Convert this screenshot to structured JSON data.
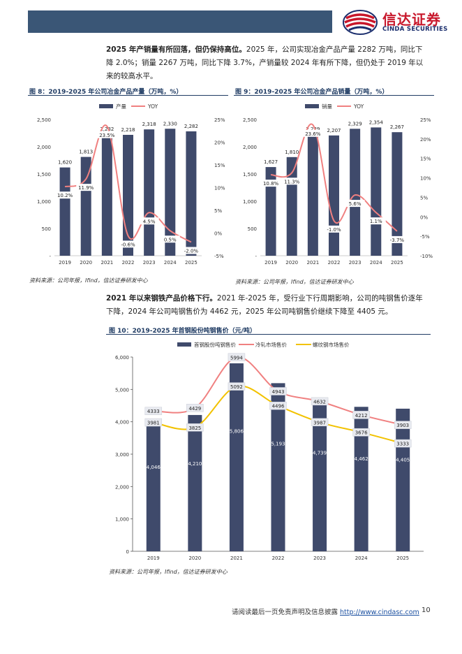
{
  "header": {
    "logo_cn": "信达证券",
    "logo_en": "CINDA SECURITIES"
  },
  "para1": {
    "bold": "2025 年产销量有所回落，但仍保持高位。",
    "text": "2025 年，公司实现冶金产品产量 2282 万吨，同比下降 2.0%；销量 2267 万吨，同比下降 3.7%，产销量较 2024 年有所下降，但仍处于 2019 年以来的较高水平。"
  },
  "fig8": {
    "title": "图 8：2019-2025 年公司冶金产品产量（万吨，%）",
    "source": "资料来源：公司年报，Ifind，信达证券研发中心"
  },
  "fig9": {
    "title": "图 9：2019-2025 年公司冶金产品销量（万吨，%）",
    "source": "资料来源：公司年报，Ifind，信达证券研发中心"
  },
  "para2": {
    "bold": "2021 年以来钢铁产品价格下行。",
    "text": "2021 年-2025 年，受行业下行周期影响，公司的吨钢售价逐年下降，2024 年公司吨钢售价为 4462 元，2025 年公司吨钢售价继续下降至 4405 元。"
  },
  "fig10": {
    "title": "图 10：2019-2025 年首钢股份吨钢售价（元/吨）",
    "source": "资料来源：公司年报，Ifind，信达证券研发中心"
  },
  "footer": {
    "text": "请阅读最后一页免责声明及信息披露 ",
    "link": "http://www.cindasc.com",
    "page": "10"
  },
  "colors": {
    "bar": "#3f4a6b",
    "yoy": "#f08080",
    "cold": "#f08080",
    "rebar": "#f2c200"
  },
  "chart_data": [
    {
      "type": "bar",
      "categories": [
        "2019",
        "2020",
        "2021",
        "2022",
        "2023",
        "2024",
        "2025"
      ],
      "series": [
        {
          "name": "产量",
          "type": "bar",
          "axis": "left",
          "values": [
            1620,
            1813,
            2232,
            2218,
            2318,
            2330,
            2282
          ]
        },
        {
          "name": "YOY",
          "type": "line",
          "axis": "right",
          "values": [
            10.2,
            11.9,
            23.5,
            -0.6,
            4.5,
            0.5,
            -2.0
          ]
        }
      ],
      "bar_labels": [
        "1,620",
        "1,813",
        "2,232",
        "2,218",
        "2,318",
        "2,330",
        "2,282"
      ],
      "yoy_labels": [
        "10.2%",
        "11.9%",
        "23.5%",
        "-0.6%",
        "4.5%",
        "0.5%",
        "-2.0%"
      ],
      "ylim": [
        0,
        2500
      ],
      "y2lim": [
        -5,
        25
      ],
      "yticks": [
        0,
        500,
        1000,
        1500,
        2000,
        2500
      ],
      "ytick_labels": [
        "-",
        "500",
        "1,000",
        "1,500",
        "2,000",
        "2,500"
      ],
      "y2ticks": [
        -5,
        0,
        5,
        10,
        15,
        20,
        25
      ],
      "y2tick_labels": [
        "-5%",
        "0%",
        "5%",
        "10%",
        "15%",
        "20%",
        "25%"
      ],
      "legend": "top"
    },
    {
      "type": "bar",
      "categories": [
        "2019",
        "2020",
        "2021",
        "2022",
        "2023",
        "2024",
        "2025"
      ],
      "series": [
        {
          "name": "销量",
          "type": "bar",
          "axis": "left",
          "values": [
            1627,
            1810,
            2229,
            2207,
            2329,
            2354,
            2267
          ]
        },
        {
          "name": "YOY",
          "type": "line",
          "axis": "right",
          "values": [
            10.8,
            11.3,
            23.6,
            -1.0,
            5.6,
            1.1,
            -3.7
          ]
        }
      ],
      "bar_labels": [
        "1,627",
        "1,810",
        "2,229",
        "2,207",
        "2,329",
        "2,354",
        "2,267"
      ],
      "yoy_labels": [
        "10.8%",
        "11.3%",
        "23.6%",
        "-1.0%",
        "5.6%",
        "1.1%",
        "-3.7%"
      ],
      "ylim": [
        0,
        2500
      ],
      "y2lim": [
        -10,
        25
      ],
      "yticks": [
        0,
        500,
        1000,
        1500,
        2000,
        2500
      ],
      "ytick_labels": [
        "-",
        "500",
        "1,000",
        "1,500",
        "2,000",
        "2,500"
      ],
      "y2ticks": [
        -10,
        -5,
        0,
        5,
        10,
        15,
        20,
        25
      ],
      "y2tick_labels": [
        "-10%",
        "-5%",
        "0%",
        "5%",
        "10%",
        "15%",
        "20%",
        "25%"
      ],
      "legend": "top"
    },
    {
      "type": "bar",
      "categories": [
        "2019",
        "2020",
        "2021",
        "2022",
        "2023",
        "2024",
        "2025"
      ],
      "series": [
        {
          "name": "首钢股份吨钢售价",
          "type": "bar",
          "values": [
            4046,
            4210,
            5806,
            5193,
            4739,
            4462,
            4405
          ]
        },
        {
          "name": "冷轧市场售价",
          "type": "line",
          "values": [
            4333,
            4429,
            5994,
            4943,
            4632,
            4212,
            3903
          ]
        },
        {
          "name": "螺纹钢市场售价",
          "type": "line",
          "values": [
            3981,
            3825,
            5092,
            4496,
            3987,
            3676,
            3333
          ]
        }
      ],
      "bar_labels": [
        "4,046",
        "4,210",
        "5,806",
        "5,193",
        "4,739",
        "4,462",
        "4,405"
      ],
      "ylim": [
        0,
        6000
      ],
      "yticks": [
        0,
        1000,
        2000,
        3000,
        4000,
        5000,
        6000
      ],
      "ytick_labels": [
        "0",
        "1,000",
        "2,000",
        "3,000",
        "4,000",
        "5,000",
        "6,000"
      ],
      "legend": "top"
    }
  ]
}
